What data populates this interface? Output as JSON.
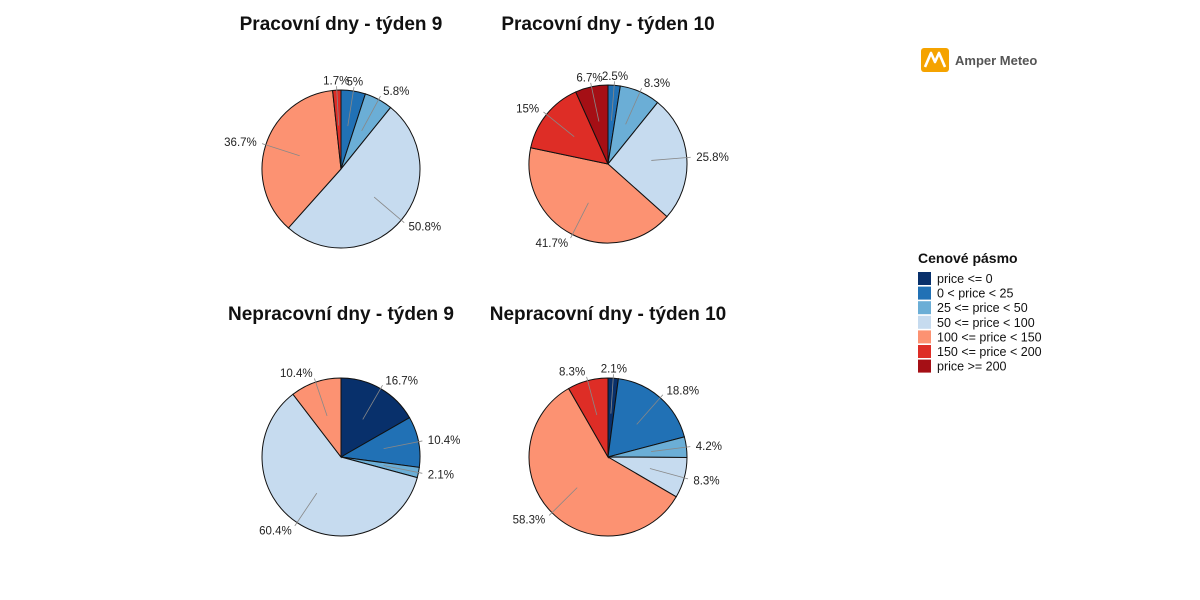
{
  "logo": {
    "name": "Amper Meteo",
    "icon": "amper-meteo-logo-icon",
    "color": "#f5a300"
  },
  "legend": {
    "title": "Cenové pásmo",
    "items": [
      {
        "label": "price <= 0",
        "color": "#08306b"
      },
      {
        "label": "0 < price < 25",
        "color": "#2171b5"
      },
      {
        "label": "25 <= price < 50",
        "color": "#6baed6"
      },
      {
        "label": "50 <= price < 100",
        "color": "#c6dbef"
      },
      {
        "label": "100 <= price < 150",
        "color": "#fc9272"
      },
      {
        "label": "150 <= price < 200",
        "color": "#de2d26"
      },
      {
        "label": "price >= 200",
        "color": "#a50f15"
      }
    ]
  },
  "chart_data": [
    {
      "type": "pie",
      "title": "Pracovní dny - týden 9",
      "slices": [
        {
          "category": "0 < price < 25",
          "value": 5,
          "label": "5%"
        },
        {
          "category": "25 <= price < 50",
          "value": 5.8,
          "label": "5.8%"
        },
        {
          "category": "50 <= price < 100",
          "value": 50.8,
          "label": "50.8%"
        },
        {
          "category": "100 <= price < 150",
          "value": 36.7,
          "label": "36.7%"
        },
        {
          "category": "150 <= price < 200",
          "value": 1.7,
          "label": "1.7%"
        }
      ]
    },
    {
      "type": "pie",
      "title": "Pracovní dny - týden 10",
      "slices": [
        {
          "category": "0 < price < 25",
          "value": 2.5,
          "label": "2.5%"
        },
        {
          "category": "25 <= price < 50",
          "value": 8.3,
          "label": "8.3%"
        },
        {
          "category": "50 <= price < 100",
          "value": 25.8,
          "label": "25.8%"
        },
        {
          "category": "100 <= price < 150",
          "value": 41.7,
          "label": "41.7%"
        },
        {
          "category": "150 <= price < 200",
          "value": 15,
          "label": "15%"
        },
        {
          "category": "price >= 200",
          "value": 6.7,
          "label": "6.7%"
        }
      ]
    },
    {
      "type": "pie",
      "title": "Nepracovní dny - týden 9",
      "slices": [
        {
          "category": "price <= 0",
          "value": 16.7,
          "label": "16.7%"
        },
        {
          "category": "0 < price < 25",
          "value": 10.4,
          "label": "10.4%"
        },
        {
          "category": "25 <= price < 50",
          "value": 2.1,
          "label": "2.1%"
        },
        {
          "category": "50 <= price < 100",
          "value": 60.4,
          "label": "60.4%"
        },
        {
          "category": "100 <= price < 150",
          "value": 10.4,
          "label": "10.4%"
        }
      ]
    },
    {
      "type": "pie",
      "title": "Nepracovní dny - týden 10",
      "slices": [
        {
          "category": "price <= 0",
          "value": 2.1,
          "label": "2.1%"
        },
        {
          "category": "0 < price < 25",
          "value": 18.8,
          "label": "18.8%"
        },
        {
          "category": "25 <= price < 50",
          "value": 4.2,
          "label": "4.2%"
        },
        {
          "category": "50 <= price < 100",
          "value": 8.3,
          "label": "8.3%"
        },
        {
          "category": "100 <= price < 150",
          "value": 58.3,
          "label": "58.3%"
        },
        {
          "category": "150 <= price < 200",
          "value": 8.3,
          "label": "8.3%"
        }
      ]
    }
  ]
}
